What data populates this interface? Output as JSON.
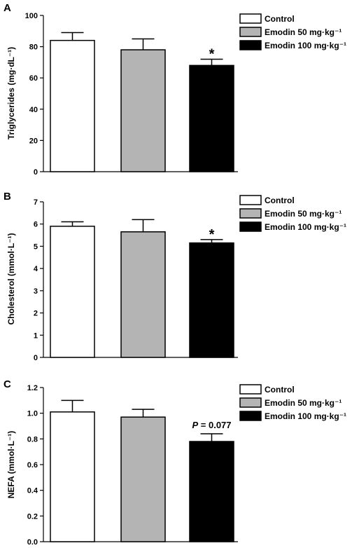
{
  "colors": {
    "Control": "#ffffff",
    "Emodin 50 mg·kg⁻¹": "#b4b4b4",
    "Emodin 100 mg·kg⁻¹": "#000000"
  },
  "chart_data": [
    {
      "panel": "A",
      "type": "bar",
      "ylabel": "Triglycerides (mg·dL⁻¹)",
      "ylim": [
        0,
        100
      ],
      "yticks": [
        0,
        20,
        40,
        60,
        80,
        100
      ],
      "ytick_labels": [
        "0",
        "20",
        "40",
        "60",
        "80",
        "100"
      ],
      "legend": [
        "Control",
        "Emodin 50 mg·kg⁻¹",
        "Emodin 100 mg·kg⁻¹"
      ],
      "legend_position": "top-right",
      "series": [
        {
          "name": "Control",
          "value": 84,
          "error": 5
        },
        {
          "name": "Emodin 50 mg·kg⁻¹",
          "value": 78,
          "error": 7
        },
        {
          "name": "Emodin 100 mg·kg⁻¹",
          "value": 68,
          "error": 4,
          "annotation": "*"
        }
      ]
    },
    {
      "panel": "B",
      "type": "bar",
      "ylabel": "Cholesterol (mmol·L⁻¹)",
      "ylim": [
        0,
        7
      ],
      "yticks": [
        0,
        1,
        2,
        3,
        4,
        5,
        6,
        7
      ],
      "ytick_labels": [
        "0",
        "1",
        "2",
        "3",
        "4",
        "5",
        "6",
        "7"
      ],
      "legend": [
        "Control",
        "Emodin 50 mg·kg⁻¹",
        "Emodin 100 mg·kg⁻¹"
      ],
      "legend_position": "top-right",
      "series": [
        {
          "name": "Control",
          "value": 5.9,
          "error": 0.2
        },
        {
          "name": "Emodin 50 mg·kg⁻¹",
          "value": 5.65,
          "error": 0.55
        },
        {
          "name": "Emodin 100 mg·kg⁻¹",
          "value": 5.15,
          "error": 0.15,
          "annotation": "*"
        }
      ]
    },
    {
      "panel": "C",
      "type": "bar",
      "ylabel": "NEFA (mmol·L⁻¹)",
      "ylim": [
        0,
        1.2
      ],
      "yticks": [
        0,
        0.2,
        0.4,
        0.6,
        0.8,
        1.0,
        1.2
      ],
      "ytick_labels": [
        "0.0",
        "0.2",
        "0.4",
        "0.6",
        "0.8",
        "1.0",
        "1.2"
      ],
      "legend": [
        "Control",
        "Emodin 50 mg·kg⁻¹",
        "Emodin 100 mg·kg⁻¹"
      ],
      "legend_position": "top-right",
      "series": [
        {
          "name": "Control",
          "value": 1.01,
          "error": 0.09
        },
        {
          "name": "Emodin 50 mg·kg⁻¹",
          "value": 0.97,
          "error": 0.06
        },
        {
          "name": "Emodin 100 mg·kg⁻¹",
          "value": 0.78,
          "error": 0.06,
          "annotation": "P = 0.077"
        }
      ]
    }
  ]
}
